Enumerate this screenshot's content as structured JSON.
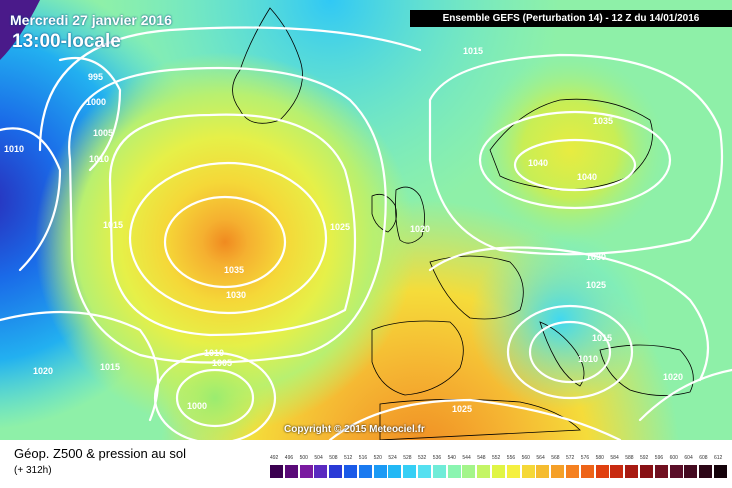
{
  "header": {
    "date": "Mercredi 27 janvier 2016",
    "local_time": "13:00-locale",
    "run_info": "Ensemble GEFS  (Perturbation 14)  -  12 Z du 14/01/2016"
  },
  "map": {
    "isobar_labels": [
      "1015",
      "995",
      "1000",
      "1005",
      "1010",
      "1010",
      "1015",
      "1035",
      "1040",
      "1040",
      "1025",
      "1020",
      "1035",
      "1030",
      "1030",
      "1025",
      "1010",
      "1005",
      "1000",
      "1015",
      "1020",
      "1015",
      "1010",
      "1025",
      "1020"
    ],
    "copyright": "Copyright © 2015 Meteociel.fr"
  },
  "footer": {
    "title": "Géop. Z500 & pression au sol",
    "lead_time": "(+ 312h)"
  },
  "legend": {
    "labels": [
      "492",
      "496",
      "500",
      "504",
      "508",
      "512",
      "516",
      "520",
      "524",
      "528",
      "532",
      "536",
      "540",
      "544",
      "548",
      "552",
      "556",
      "560",
      "564",
      "568",
      "572",
      "576",
      "580",
      "584",
      "588",
      "592",
      "596",
      "600",
      "604",
      "608",
      "612"
    ],
    "colors": [
      "#3b0050",
      "#5a0a78",
      "#7a1aa0",
      "#5a2ac0",
      "#2a3ad6",
      "#1a5ae8",
      "#1a7af0",
      "#1a9af5",
      "#22b8f5",
      "#36cff5",
      "#55e0f0",
      "#70ecd8",
      "#8af5b0",
      "#a4f58a",
      "#c4f565",
      "#e0f545",
      "#f5f040",
      "#f5d838",
      "#f5bc30",
      "#f5a028",
      "#f58020",
      "#ee6418",
      "#e04010",
      "#c82a10",
      "#a81a12",
      "#881014",
      "#701020",
      "#5a0e28",
      "#440a20",
      "#2c0616",
      "#14020a"
    ]
  }
}
